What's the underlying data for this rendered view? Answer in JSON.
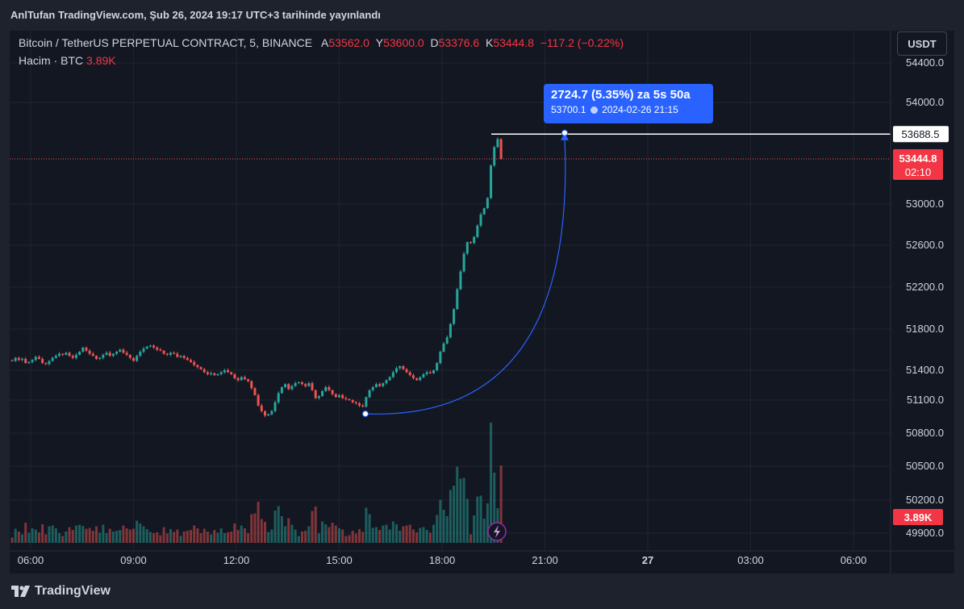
{
  "header": {
    "published_text": "AnlTufan TradingView.com, Şub 26, 2024 19:17 UTC+3 tarihinde yayınlandı"
  },
  "legend": {
    "symbol": "Bitcoin / TetherUS PERPETUAL CONTRACT, 5, BINANCE",
    "open_label": "A",
    "open_value": "53562.0",
    "high_label": "Y",
    "high_value": "53600.0",
    "low_label": "D",
    "low_value": "53376.6",
    "close_label": "K",
    "close_value": "53444.8",
    "change": "−117.2 (−0.22%)",
    "volume_label": "Hacim · BTC",
    "volume_value": "3.89K"
  },
  "currency_button": "USDT",
  "measure_tooltip": {
    "main": "2724.7 (5.35%) za 5s 50a",
    "sub_price": "53700.1",
    "sub_datetime": "2024-02-26  21:15"
  },
  "price_labels": {
    "ruler_price": "53688.5",
    "last_price": "53444.8",
    "countdown": "02:10",
    "volume": "3.89K"
  },
  "colors": {
    "up": "#26a69a",
    "down": "#ef5350",
    "measure": "#2962ff",
    "background": "#131722"
  },
  "footer": {
    "brand": "TradingView"
  },
  "chart_data": {
    "type": "candlestick",
    "timeframe": "5",
    "y_ticks": [
      54400,
      54000,
      53000,
      52600,
      52200,
      51800,
      51400,
      51100,
      50800,
      50500,
      50200,
      49900
    ],
    "y_tick_labels": [
      "54400.0",
      "54000.0",
      "53000.0",
      "52600.0",
      "52200.0",
      "51800.0",
      "51400.0",
      "51100.0",
      "50800.0",
      "50500.0",
      "50200.0",
      "49900.0"
    ],
    "x_ticks": [
      "06:00",
      "09:00",
      "12:00",
      "15:00",
      "18:00",
      "21:00",
      "27",
      "03:00",
      "06:00"
    ],
    "series": [
      {
        "name": "price",
        "close": [
          51490,
          51520,
          51500,
          51510,
          51470,
          51480,
          51500,
          51530,
          51510,
          51470,
          51460,
          51490,
          51520,
          51540,
          51560,
          51550,
          51570,
          51540,
          51520,
          51550,
          51580,
          51620,
          51590,
          51560,
          51540,
          51510,
          51520,
          51550,
          51570,
          51540,
          51560,
          51580,
          51600,
          51570,
          51550,
          51520,
          51490,
          51540,
          51580,
          51610,
          51630,
          51640,
          51620,
          51600,
          51590,
          51560,
          51550,
          51570,
          51560,
          51530,
          51540,
          51520,
          51500,
          51480,
          51450,
          51430,
          51410,
          51380,
          51360,
          51370,
          51350,
          51360,
          51380,
          51400,
          51380,
          51360,
          51320,
          51300,
          51330,
          51310,
          51290,
          51220,
          51150,
          51050,
          51000,
          50960,
          50970,
          51000,
          51080,
          51170,
          51230,
          51260,
          51210,
          51240,
          51270,
          51280,
          51260,
          51240,
          51270,
          51200,
          51120,
          51140,
          51190,
          51230,
          51200,
          51160,
          51130,
          51150,
          51120,
          51110,
          51100,
          51080,
          51070,
          51050,
          51040,
          51130,
          51200,
          51230,
          51260,
          51240,
          51270,
          51300,
          51330,
          51380,
          51420,
          51440,
          51410,
          51380,
          51350,
          51320,
          51300,
          51330,
          51360,
          51380,
          51370,
          51400,
          51470,
          51580,
          51660,
          51720,
          51850,
          51990,
          52180,
          52350,
          52520,
          52630,
          52620,
          52680,
          52790,
          52900,
          52960,
          53060,
          53380,
          53560,
          53640,
          53444.8
        ]
      },
      {
        "name": "Hacim · BTC",
        "volume_last": 3.89
      }
    ],
    "measure": {
      "from_price": 50975.4,
      "to_price": 53700.1,
      "change": 2724.7,
      "change_pct": 5.35,
      "to_datetime": "2024-02-26 21:15",
      "ruler_price": 53688.5
    },
    "last_price": 53444.8,
    "grid": true,
    "legend_position": "top-left"
  }
}
